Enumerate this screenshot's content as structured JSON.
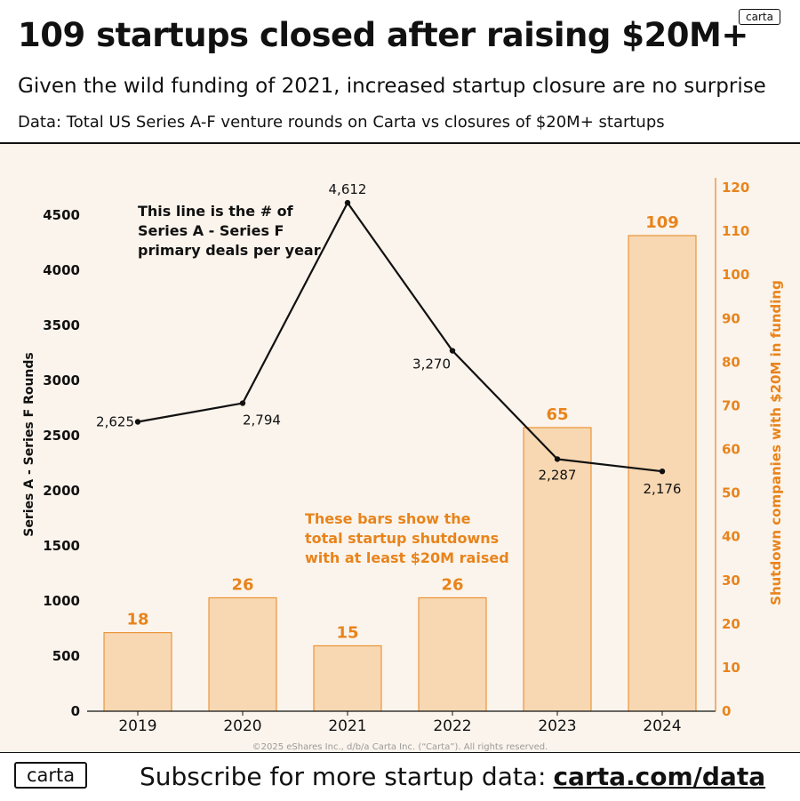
{
  "header": {
    "title": "109 startups closed after raising $20M+",
    "subtitle": "Given the wild funding of 2021, increased startup closure are no surprise",
    "data_note": "Data: Total US Series A-F venture rounds  on Carta vs closures of $20M+ startups",
    "logo": "carta"
  },
  "chart_data": {
    "type": "bar",
    "categories": [
      "2019",
      "2020",
      "2021",
      "2022",
      "2023",
      "2024"
    ],
    "series": [
      {
        "kind": "bar",
        "axis": "right",
        "values": [
          18,
          26,
          15,
          26,
          65,
          109
        ],
        "labels": [
          "18",
          "26",
          "15",
          "26",
          "65",
          "109"
        ]
      },
      {
        "kind": "line",
        "axis": "left",
        "values": [
          2625,
          2794,
          4612,
          3270,
          2287,
          2176
        ],
        "labels": [
          "2,625",
          "2,794",
          "4,612",
          "3,270",
          "2,287",
          "2,176"
        ]
      }
    ],
    "ylabel_left": "Series A - Series F Rounds",
    "ylabel_right": "Shutdown companies with $20M in funding",
    "ylim_left": [
      0,
      4650
    ],
    "ylim_right": [
      0,
      116.25
    ],
    "yticks_left": [
      "0",
      "500",
      "1000",
      "1500",
      "2000",
      "2500",
      "3000",
      "3500",
      "4000",
      "4500"
    ],
    "yticks_right": [
      "0",
      "10",
      "20",
      "30",
      "40",
      "50",
      "60",
      "70",
      "80",
      "90",
      "100",
      "110",
      "120"
    ],
    "annotations": {
      "line": [
        "This line is the # of",
        "Series A - Series F",
        "primary deals per year"
      ],
      "bars": [
        "These bars show the",
        "total startup shutdowns",
        "with at least $20M raised"
      ]
    },
    "copyright": "©2025 eShares Inc., d/b/a Carta Inc. (“Carta”). All rights reserved.",
    "colors": {
      "bar_fill": "#f8d8b2",
      "bar_stroke": "#e8841c",
      "line": "#111111",
      "right_axis": "#e8841c"
    },
    "grid": false
  },
  "footer": {
    "logo": "carta",
    "text": "Subscribe for more startup data:",
    "link": "carta.com/data"
  }
}
